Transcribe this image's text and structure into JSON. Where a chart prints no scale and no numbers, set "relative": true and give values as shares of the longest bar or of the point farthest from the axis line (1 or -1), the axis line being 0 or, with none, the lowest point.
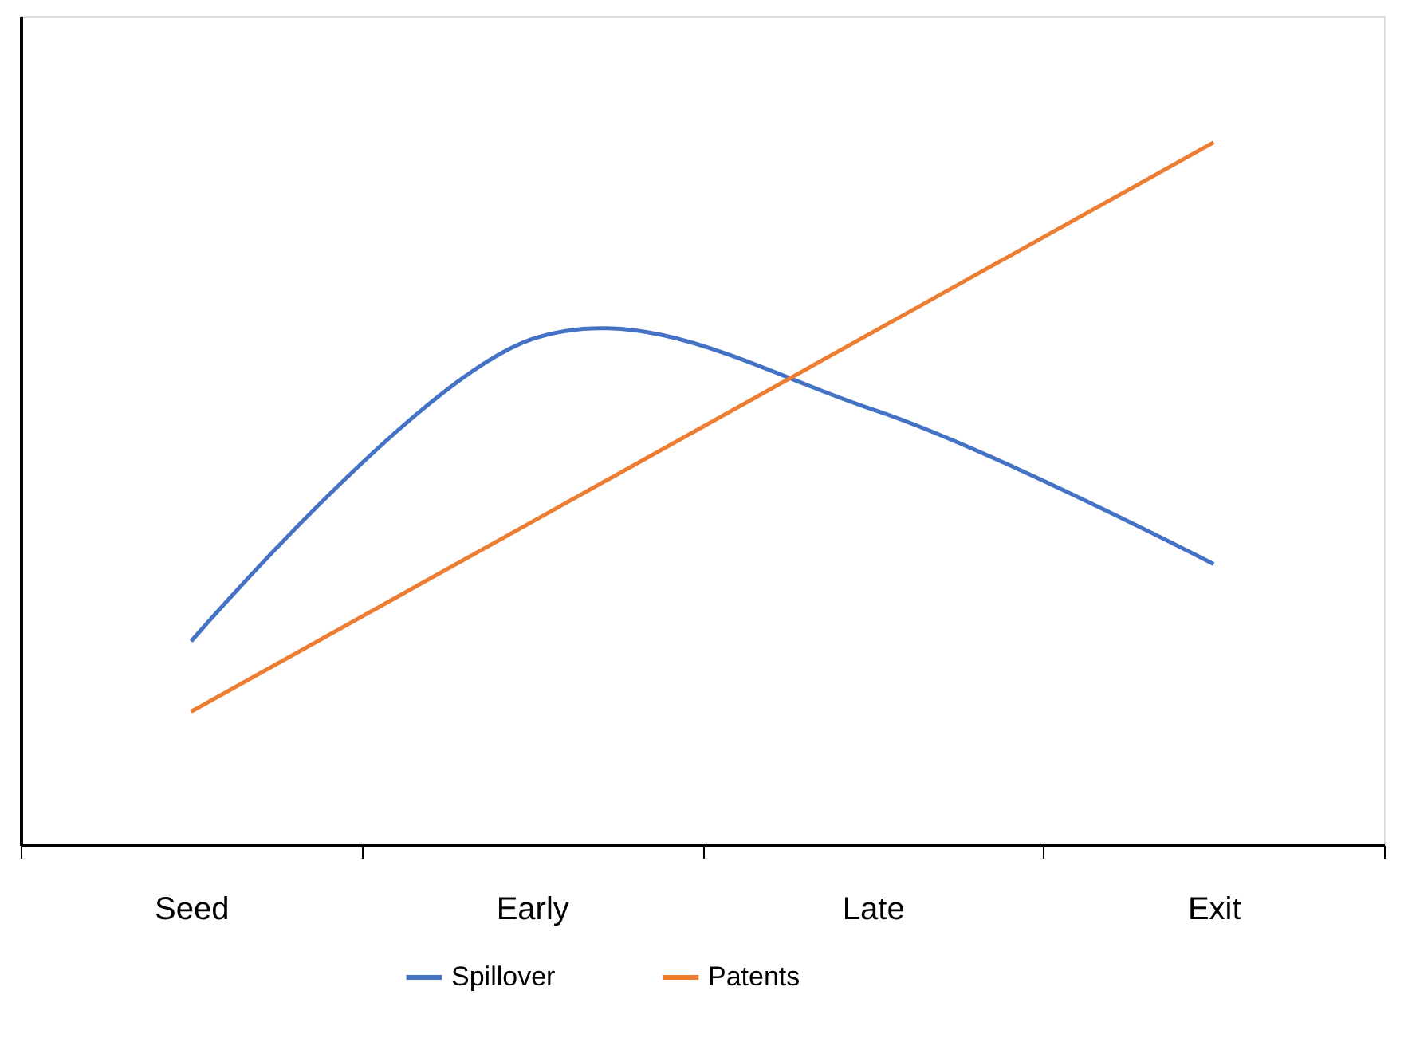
{
  "chart_data": {
    "type": "line",
    "relative": true,
    "categories": [
      "Seed",
      "Early",
      "Late",
      "Exit"
    ],
    "series": [
      {
        "name": "Spillover",
        "color": "#4472c4",
        "values": [
          0.29,
          0.72,
          0.62,
          0.4
        ]
      },
      {
        "name": "Patents",
        "color": "#ed7d31",
        "values": [
          0.19,
          0.46,
          0.73,
          1.0
        ]
      }
    ],
    "legend": "bottom",
    "grid": false,
    "marker": "none",
    "line_style": "solid"
  }
}
